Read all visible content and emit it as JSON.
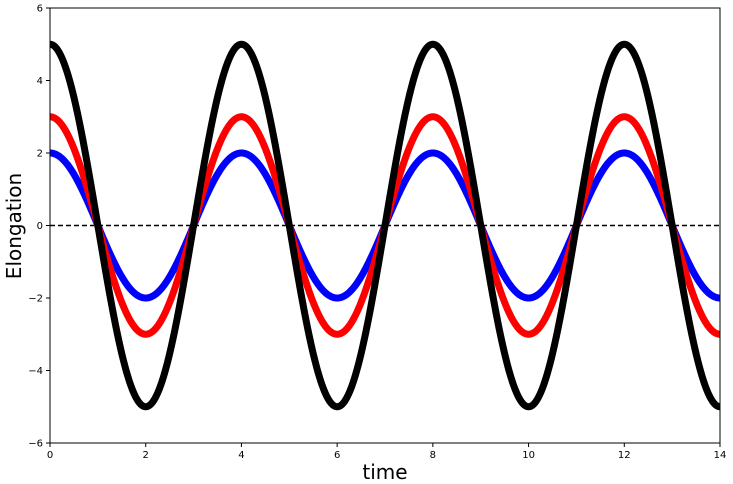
{
  "chart_data": {
    "type": "line",
    "xlabel": "time",
    "ylabel": "Elongation",
    "xlim": [
      0,
      14
    ],
    "ylim": [
      -6,
      6
    ],
    "xticks": [
      0,
      2,
      4,
      6,
      8,
      10,
      12,
      14
    ],
    "yticks": [
      -6,
      -4,
      -2,
      0,
      2,
      4,
      6
    ],
    "grid": false,
    "series": [
      {
        "amplitude": 2,
        "period": 4,
        "phase": 0,
        "function": "cosine",
        "color": "#0000ff"
      },
      {
        "amplitude": 3,
        "period": 4,
        "phase": 0,
        "function": "cosine",
        "color": "#ff0000"
      },
      {
        "amplitude": 5,
        "period": 4,
        "phase": 0,
        "function": "cosine",
        "color": "#000000"
      }
    ],
    "reference_line": {
      "y": 0,
      "style": "dashed",
      "color": "#000000"
    }
  }
}
